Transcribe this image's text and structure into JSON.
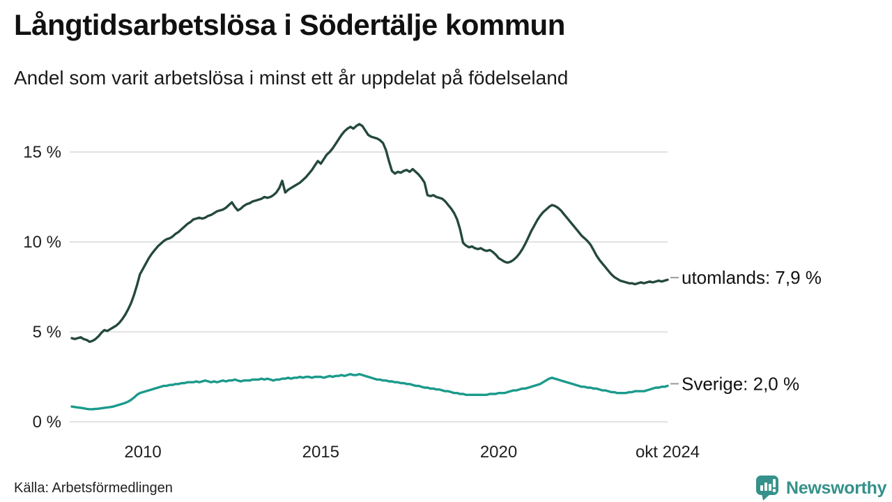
{
  "title": "Långtidsarbetslösa i Södertälje kommun",
  "subtitle": "Andel som varit arbetslösa i minst ett år uppdelat på födelseland",
  "source": "Källa: Arbetsförmedlingen",
  "branding": {
    "wordmark": "Newsworthy",
    "color": "#35918a"
  },
  "chart_data": {
    "type": "line",
    "title": "Långtidsarbetslösa i Södertälje kommun",
    "subtitle": "Andel som varit arbetslösa i minst ett år uppdelat på födelseland",
    "x_unit": "month",
    "x_range": "2008-01 to 2024-10",
    "ylim": [
      0,
      17
    ],
    "grid": "horizontal",
    "legend_position": "right-end-labels",
    "colors": {
      "grid": "#e2e2e2",
      "tick_text": "#1f1f1f",
      "label_text": "#111111",
      "connector": "#999999"
    },
    "y_ticks": [
      {
        "label": "0 %",
        "value": 0
      },
      {
        "label": "5 %",
        "value": 5
      },
      {
        "label": "10 %",
        "value": 10
      },
      {
        "label": "15 %",
        "value": 15
      }
    ],
    "x_ticks": [
      {
        "label": "2010",
        "t": 2010.0
      },
      {
        "label": "2015",
        "t": 2015.0
      },
      {
        "label": "2020",
        "t": 2020.0
      },
      {
        "label": "okt 2024",
        "t": 2024.75
      }
    ],
    "series": [
      {
        "name": "utomlands",
        "end_label": "utomlands: 7,9 %",
        "end_value": "7,9 %",
        "color": "#24493c",
        "values": [
          4.65,
          4.6,
          4.65,
          4.7,
          4.6,
          4.55,
          4.45,
          4.5,
          4.6,
          4.75,
          4.95,
          5.1,
          5.05,
          5.15,
          5.25,
          5.35,
          5.5,
          5.7,
          5.95,
          6.25,
          6.6,
          7.05,
          7.6,
          8.2,
          8.5,
          8.8,
          9.1,
          9.35,
          9.55,
          9.75,
          9.9,
          10.05,
          10.15,
          10.2,
          10.3,
          10.45,
          10.55,
          10.7,
          10.85,
          11.0,
          11.1,
          11.25,
          11.3,
          11.35,
          11.3,
          11.35,
          11.45,
          11.5,
          11.6,
          11.7,
          11.75,
          11.8,
          11.9,
          12.05,
          12.2,
          11.95,
          11.75,
          11.85,
          12.0,
          12.1,
          12.15,
          12.25,
          12.3,
          12.35,
          12.4,
          12.5,
          12.45,
          12.5,
          12.6,
          12.75,
          13.0,
          13.4,
          12.75,
          12.9,
          13.0,
          13.1,
          13.2,
          13.3,
          13.45,
          13.6,
          13.8,
          14.0,
          14.25,
          14.5,
          14.35,
          14.6,
          14.85,
          15.0,
          15.2,
          15.45,
          15.7,
          15.95,
          16.15,
          16.3,
          16.4,
          16.3,
          16.45,
          16.55,
          16.45,
          16.2,
          15.95,
          15.85,
          15.8,
          15.75,
          15.65,
          15.5,
          15.1,
          14.5,
          13.95,
          13.8,
          13.9,
          13.85,
          13.95,
          14.0,
          13.9,
          14.05,
          13.9,
          13.75,
          13.55,
          13.3,
          12.6,
          12.55,
          12.6,
          12.5,
          12.45,
          12.4,
          12.25,
          12.05,
          11.85,
          11.6,
          11.25,
          10.7,
          9.95,
          9.8,
          9.7,
          9.75,
          9.65,
          9.6,
          9.65,
          9.55,
          9.5,
          9.55,
          9.45,
          9.3,
          9.1,
          9.0,
          8.9,
          8.85,
          8.9,
          9.0,
          9.15,
          9.35,
          9.6,
          9.9,
          10.25,
          10.6,
          10.9,
          11.2,
          11.45,
          11.65,
          11.8,
          11.95,
          12.05,
          12.0,
          11.9,
          11.75,
          11.55,
          11.35,
          11.15,
          10.95,
          10.75,
          10.55,
          10.35,
          10.2,
          10.05,
          9.85,
          9.55,
          9.25,
          9.0,
          8.8,
          8.6,
          8.4,
          8.2,
          8.05,
          7.95,
          7.85,
          7.8,
          7.75,
          7.7,
          7.7,
          7.65,
          7.7,
          7.75,
          7.7,
          7.75,
          7.8,
          7.75,
          7.8,
          7.85,
          7.8,
          7.85,
          7.9
        ]
      },
      {
        "name": "Sverige",
        "end_label": "Sverige: 2,0 %",
        "end_value": "2,0 %",
        "color": "#1b9a8b",
        "values": [
          0.85,
          0.82,
          0.8,
          0.78,
          0.75,
          0.72,
          0.7,
          0.7,
          0.72,
          0.73,
          0.75,
          0.78,
          0.8,
          0.82,
          0.85,
          0.9,
          0.95,
          1.0,
          1.05,
          1.12,
          1.22,
          1.35,
          1.5,
          1.6,
          1.65,
          1.7,
          1.75,
          1.8,
          1.85,
          1.9,
          1.95,
          2.0,
          2.0,
          2.05,
          2.05,
          2.1,
          2.1,
          2.15,
          2.15,
          2.2,
          2.2,
          2.2,
          2.25,
          2.2,
          2.25,
          2.3,
          2.25,
          2.2,
          2.25,
          2.2,
          2.25,
          2.3,
          2.25,
          2.3,
          2.3,
          2.35,
          2.3,
          2.25,
          2.3,
          2.3,
          2.3,
          2.35,
          2.35,
          2.35,
          2.4,
          2.35,
          2.4,
          2.35,
          2.3,
          2.35,
          2.35,
          2.4,
          2.4,
          2.45,
          2.4,
          2.45,
          2.45,
          2.5,
          2.45,
          2.5,
          2.5,
          2.45,
          2.5,
          2.5,
          2.5,
          2.45,
          2.5,
          2.55,
          2.5,
          2.55,
          2.55,
          2.6,
          2.55,
          2.6,
          2.65,
          2.6,
          2.6,
          2.65,
          2.6,
          2.55,
          2.5,
          2.45,
          2.4,
          2.35,
          2.35,
          2.3,
          2.3,
          2.25,
          2.25,
          2.2,
          2.2,
          2.15,
          2.15,
          2.1,
          2.1,
          2.05,
          2.0,
          2.0,
          1.95,
          1.9,
          1.9,
          1.85,
          1.85,
          1.8,
          1.8,
          1.75,
          1.7,
          1.7,
          1.65,
          1.6,
          1.6,
          1.55,
          1.55,
          1.5,
          1.5,
          1.5,
          1.5,
          1.5,
          1.5,
          1.5,
          1.5,
          1.55,
          1.55,
          1.55,
          1.6,
          1.6,
          1.6,
          1.65,
          1.7,
          1.75,
          1.75,
          1.8,
          1.85,
          1.85,
          1.9,
          1.95,
          2.0,
          2.05,
          2.1,
          2.2,
          2.3,
          2.4,
          2.45,
          2.4,
          2.35,
          2.3,
          2.25,
          2.2,
          2.15,
          2.1,
          2.05,
          2.0,
          1.95,
          1.95,
          1.9,
          1.9,
          1.85,
          1.85,
          1.8,
          1.75,
          1.75,
          1.7,
          1.65,
          1.65,
          1.6,
          1.6,
          1.6,
          1.6,
          1.65,
          1.65,
          1.7,
          1.7,
          1.7,
          1.7,
          1.75,
          1.8,
          1.85,
          1.9,
          1.9,
          1.95,
          1.95,
          2.0
        ]
      }
    ]
  }
}
